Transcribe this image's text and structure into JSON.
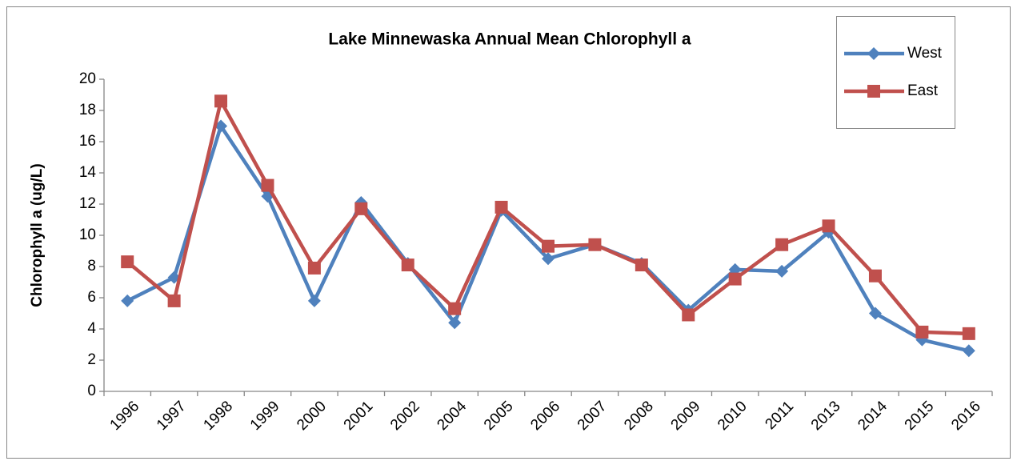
{
  "chart_data": {
    "type": "line",
    "title": "Lake Minnewaska Annual Mean Chlorophyll a",
    "y_label": "Chlorophyll a (ug/L)",
    "categories": [
      "1996",
      "1997",
      "1998",
      "1999",
      "2000",
      "2001",
      "2002",
      "2004",
      "2005",
      "2006",
      "2007",
      "2008",
      "2009",
      "2010",
      "2011",
      "2013",
      "2014",
      "2015",
      "2016"
    ],
    "series": [
      {
        "name": "West",
        "color": "#4f81bd",
        "marker": "diamond",
        "values": [
          5.8,
          7.3,
          17.0,
          12.5,
          5.8,
          12.1,
          8.2,
          4.4,
          11.6,
          8.5,
          9.4,
          8.2,
          5.2,
          7.8,
          7.7,
          10.2,
          5.0,
          3.3,
          2.6
        ]
      },
      {
        "name": "East",
        "color": "#c0504d",
        "marker": "square",
        "values": [
          8.3,
          5.8,
          18.6,
          13.2,
          7.9,
          11.7,
          8.1,
          5.3,
          11.8,
          9.3,
          9.4,
          8.1,
          4.9,
          7.2,
          9.4,
          10.6,
          7.4,
          3.8,
          3.7
        ]
      }
    ],
    "ylim": [
      0,
      20
    ],
    "yticks": [
      0,
      2,
      4,
      6,
      8,
      10,
      12,
      14,
      16,
      18,
      20
    ],
    "grid": false,
    "legend": "top-right"
  }
}
